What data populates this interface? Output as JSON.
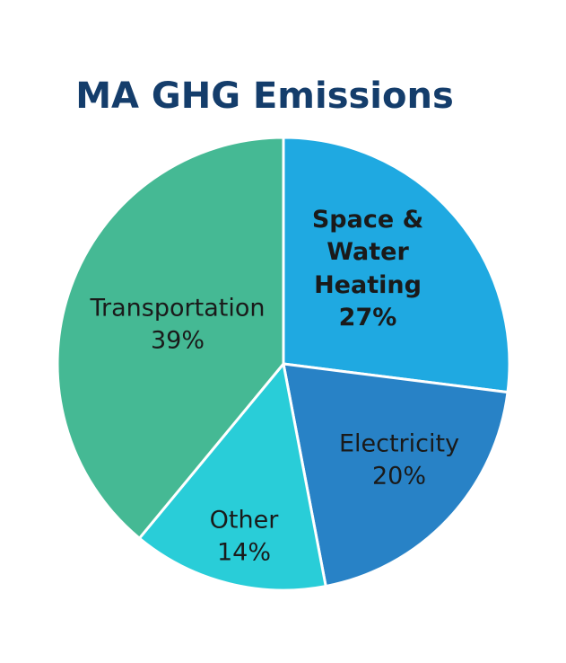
{
  "chart_data": {
    "type": "pie",
    "title": "MA GHG Emissions",
    "categories": [
      "Space & Water Heating",
      "Electricity",
      "Other",
      "Transportation"
    ],
    "values": [
      27,
      20,
      14,
      39
    ],
    "value_labels": [
      "27%",
      "20%",
      "14%",
      "39%"
    ],
    "colors": [
      "#1fa9e1",
      "#2882c6",
      "#29cdd8",
      "#45b994"
    ]
  }
}
